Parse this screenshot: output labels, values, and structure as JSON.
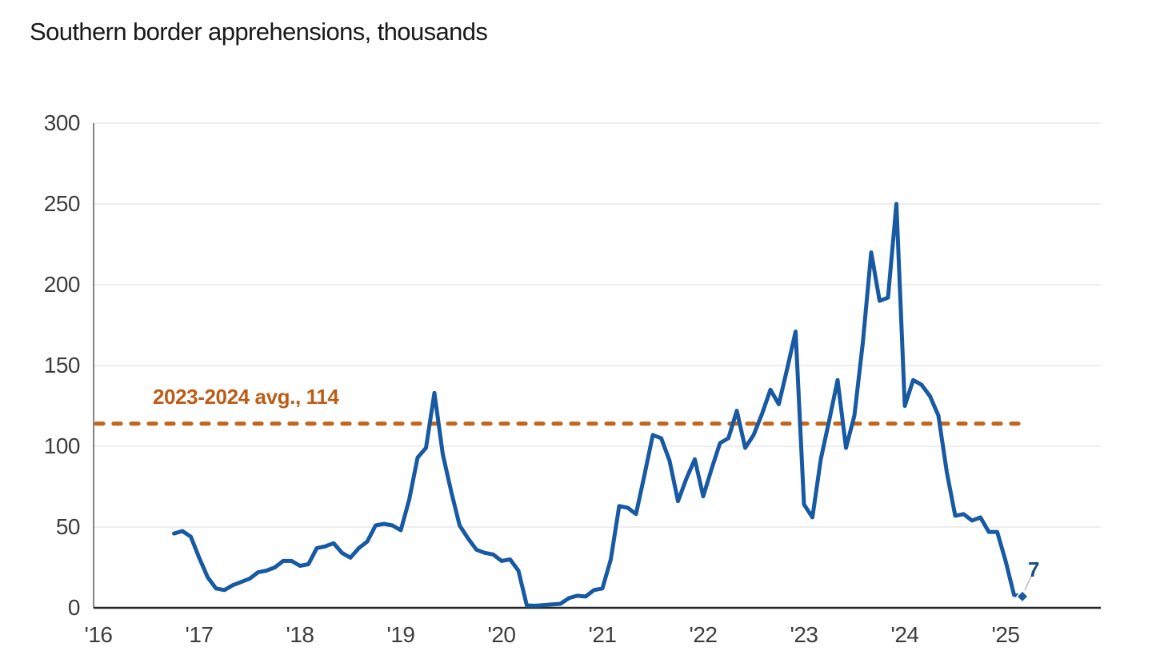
{
  "page": {
    "background": "#ffffff"
  },
  "chart_data": {
    "type": "line",
    "title": "Southern border apprehensions, thousands",
    "xlabel": "",
    "ylabel": "thousands",
    "ylim": [
      0,
      300
    ],
    "yticks": [
      0,
      50,
      100,
      150,
      200,
      250,
      300
    ],
    "xticks": [
      "'16",
      "'17",
      "'18",
      "'19",
      "'20",
      "'21",
      "'22",
      "'23",
      "'24",
      "'25"
    ],
    "grid": "horizontal-light",
    "legend": "none",
    "frequency": "monthly",
    "start": {
      "year": 2016,
      "month": 10
    },
    "end": {
      "year": 2025,
      "month": 3
    },
    "series": [
      {
        "name": "Southern border apprehensions",
        "color": "#1759a3",
        "values": [
          46,
          47.5,
          44,
          31,
          19,
          12,
          11,
          14,
          16,
          18,
          22,
          23,
          25,
          29,
          29,
          26,
          27,
          37,
          38,
          40,
          34,
          31,
          37,
          41,
          51,
          52,
          51,
          48,
          67,
          93,
          99,
          133,
          95,
          72,
          51,
          43,
          36,
          34,
          33,
          29,
          30,
          23,
          1.5,
          1.3,
          1.7,
          2.1,
          2.5,
          6,
          7.5,
          7,
          11,
          12,
          30,
          63,
          62,
          58,
          82,
          107,
          105,
          91,
          66,
          80,
          92,
          69,
          86,
          102,
          105,
          122,
          99,
          107,
          120,
          135,
          126,
          148,
          171,
          64,
          56,
          92,
          116,
          141,
          99,
          119,
          164,
          220,
          190,
          192,
          250,
          125,
          141,
          138,
          131,
          119,
          84,
          57,
          58,
          54,
          56,
          47,
          47,
          29,
          8,
          7
        ]
      }
    ],
    "avg_line": {
      "label": "2023-2024 avg., 114",
      "value": 114,
      "style": "dashed",
      "color": "#c2661c",
      "label_color": "#bc5d17"
    },
    "end_label": {
      "text": "7",
      "value": 7,
      "marker": "diamond",
      "color": "#1b5080"
    },
    "axis_colors": {
      "tick_text": "#3d3d3d",
      "gridline": "#e4e4e4",
      "left_spine": "#6e6e6e",
      "bottom_axis": "#262626",
      "leader_line": "#aaaaaa"
    }
  }
}
